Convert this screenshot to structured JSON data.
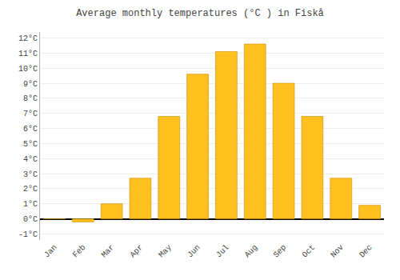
{
  "chart_data": {
    "type": "bar",
    "title": "Average monthly temperatures (°C ) in Fiskå",
    "categories": [
      "Jan",
      "Feb",
      "Mar",
      "Apr",
      "May",
      "Jun",
      "Jul",
      "Aug",
      "Sep",
      "Oct",
      "Nov",
      "Dec"
    ],
    "values": [
      0.0,
      -0.2,
      1.0,
      2.7,
      6.8,
      9.6,
      11.1,
      11.6,
      9.0,
      6.8,
      2.7,
      0.9
    ],
    "color": "#FFC020",
    "ylim": [
      -1.4,
      12.4
    ],
    "yticks": [
      {
        "value": -1,
        "label": "-1°C"
      },
      {
        "value": 0,
        "label": "0°C"
      },
      {
        "value": 1,
        "label": "1°C"
      },
      {
        "value": 2,
        "label": "2°C"
      },
      {
        "value": 3,
        "label": "3°C"
      },
      {
        "value": 4,
        "label": "4°C"
      },
      {
        "value": 5,
        "label": "5°C"
      },
      {
        "value": 6,
        "label": "6°C"
      },
      {
        "value": 7,
        "label": "7°C"
      },
      {
        "value": 8,
        "label": "8°C"
      },
      {
        "value": 9,
        "label": "9°C"
      },
      {
        "value": 10,
        "label": "10°C"
      },
      {
        "value": 11,
        "label": "11°C"
      },
      {
        "value": 12,
        "label": "12°C"
      }
    ],
    "grid": true
  }
}
